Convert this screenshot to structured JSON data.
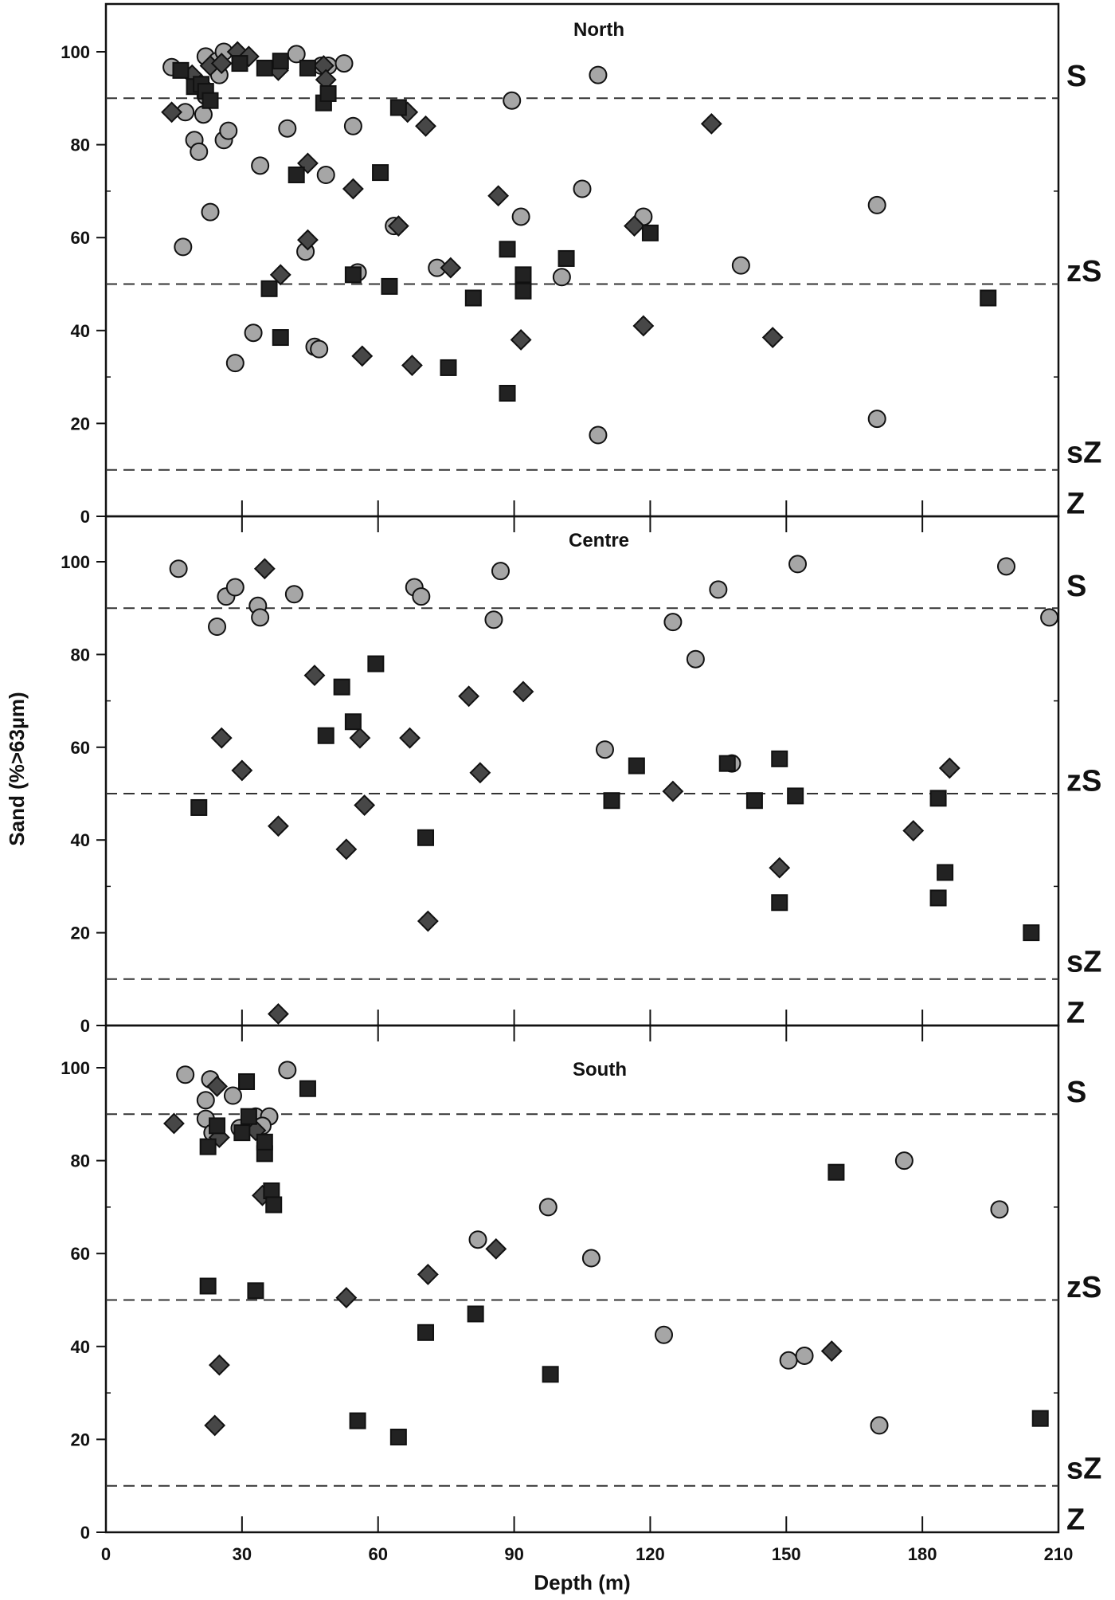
{
  "chart_data": {
    "type": "scatter",
    "xlabel": "Depth (m)",
    "ylabel": "Sand (%>63µm)",
    "xlim": [
      0,
      210
    ],
    "ylim": [
      0,
      110
    ],
    "x_ticks": [
      0,
      30,
      60,
      90,
      120,
      150,
      180,
      210
    ],
    "y_ticks": [
      0,
      20,
      40,
      60,
      80,
      100
    ],
    "grid": false,
    "legend": null,
    "thresholds": [
      {
        "y": 90,
        "style": "dashed",
        "label": "S"
      },
      {
        "y": 50,
        "style": "dashed",
        "label": "zS"
      },
      {
        "y": 10,
        "style": "dashed",
        "label": "sZ"
      }
    ],
    "class_labels": [
      {
        "label": "S",
        "y": 95
      },
      {
        "label": "zS",
        "y": 53
      },
      {
        "label": "sZ",
        "y": 14
      },
      {
        "label": "Z",
        "y": 3
      }
    ],
    "marker_styles": {
      "circle": {
        "fill": "#a6a6a6",
        "stroke": "#111111"
      },
      "diamond": {
        "fill": "#474747",
        "stroke": "#111111"
      },
      "square": {
        "fill": "#222222",
        "stroke": "#111111"
      }
    },
    "panels": [
      {
        "title": "North",
        "series": [
          {
            "marker": "circle",
            "points": [
              [
                14.5,
                96.7
              ],
              [
                17,
                58
              ],
              [
                17.5,
                87
              ],
              [
                19.5,
                81
              ],
              [
                20.5,
                78.5
              ],
              [
                21.5,
                86.5
              ],
              [
                22,
                90.5
              ],
              [
                22,
                99
              ],
              [
                23,
                65.5
              ],
              [
                24.5,
                98
              ],
              [
                25,
                95
              ],
              [
                26,
                81
              ],
              [
                26,
                100
              ],
              [
                27,
                83
              ],
              [
                28.5,
                33
              ],
              [
                32.5,
                39.5
              ],
              [
                34,
                75.5
              ],
              [
                40,
                83.5
              ],
              [
                42,
                99.5
              ],
              [
                44,
                57
              ],
              [
                46,
                36.5
              ],
              [
                47,
                36
              ],
              [
                47.5,
                97
              ],
              [
                48.5,
                73.5
              ],
              [
                49,
                97
              ],
              [
                52.5,
                97.5
              ],
              [
                54.5,
                84
              ],
              [
                55.5,
                52.5
              ],
              [
                63.5,
                62.5
              ],
              [
                73,
                53.5
              ],
              [
                89.5,
                89.5
              ],
              [
                91.5,
                64.5
              ],
              [
                100.5,
                51.5
              ],
              [
                105,
                70.5
              ],
              [
                108.5,
                95
              ],
              [
                108.5,
                17.5
              ],
              [
                118.5,
                64.5
              ],
              [
                140,
                54
              ],
              [
                170,
                67
              ],
              [
                170,
                21
              ]
            ]
          },
          {
            "marker": "diamond",
            "points": [
              [
                14.5,
                87
              ],
              [
                19,
                95
              ],
              [
                21,
                93
              ],
              [
                23,
                97
              ],
              [
                25.5,
                97.5
              ],
              [
                29,
                100
              ],
              [
                31.5,
                99
              ],
              [
                38,
                96
              ],
              [
                38.5,
                52
              ],
              [
                44.5,
                76
              ],
              [
                44.5,
                59.5
              ],
              [
                48,
                97
              ],
              [
                48.5,
                94
              ],
              [
                54.5,
                70.5
              ],
              [
                56.5,
                34.5
              ],
              [
                64.5,
                62.5
              ],
              [
                66.5,
                87
              ],
              [
                67.5,
                32.5
              ],
              [
                70.5,
                84
              ],
              [
                76,
                53.5
              ],
              [
                86.5,
                69
              ],
              [
                91.5,
                38
              ],
              [
                116.5,
                62.5
              ],
              [
                118.5,
                41
              ],
              [
                133.5,
                84.5
              ],
              [
                147,
                38.5
              ]
            ]
          },
          {
            "marker": "square",
            "points": [
              [
                16.5,
                96
              ],
              [
                19.5,
                92.5
              ],
              [
                21,
                93
              ],
              [
                22,
                91.5
              ],
              [
                23,
                89.5
              ],
              [
                29.5,
                97.5
              ],
              [
                38.5,
                98
              ],
              [
                38.5,
                38.5
              ],
              [
                35,
                96.5
              ],
              [
                44.5,
                96.5
              ],
              [
                42,
                73.5
              ],
              [
                36,
                49
              ],
              [
                48,
                89
              ],
              [
                49,
                91
              ],
              [
                54.5,
                52
              ],
              [
                60.5,
                74
              ],
              [
                62.5,
                49.5
              ],
              [
                64.5,
                88
              ],
              [
                75.5,
                32
              ],
              [
                81,
                47
              ],
              [
                88.5,
                57.5
              ],
              [
                88.5,
                26.5
              ],
              [
                92,
                52
              ],
              [
                92,
                48.5
              ],
              [
                101.5,
                55.5
              ],
              [
                120,
                61
              ],
              [
                194.5,
                47
              ]
            ]
          }
        ]
      },
      {
        "title": "Centre",
        "series": [
          {
            "marker": "circle",
            "points": [
              [
                16,
                98.5
              ],
              [
                24.5,
                86
              ],
              [
                26.5,
                92.5
              ],
              [
                28.5,
                94.5
              ],
              [
                33.5,
                90.5
              ],
              [
                34,
                88
              ],
              [
                41.5,
                93
              ],
              [
                68,
                94.5
              ],
              [
                69.5,
                92.5
              ],
              [
                85.5,
                87.5
              ],
              [
                87,
                98
              ],
              [
                110,
                59.5
              ],
              [
                125,
                87
              ],
              [
                130,
                79
              ],
              [
                135,
                94
              ],
              [
                138,
                56.5
              ],
              [
                152.5,
                99.5
              ],
              [
                198.5,
                99
              ],
              [
                208,
                88
              ]
            ]
          },
          {
            "marker": "diamond",
            "points": [
              [
                25.5,
                62
              ],
              [
                30,
                55
              ],
              [
                35,
                98.5
              ],
              [
                38,
                43
              ],
              [
                38,
                2.5
              ],
              [
                46,
                75.5
              ],
              [
                53,
                38
              ],
              [
                56,
                62
              ],
              [
                57,
                47.5
              ],
              [
                67,
                62
              ],
              [
                71,
                22.5
              ],
              [
                80,
                71
              ],
              [
                82.5,
                54.5
              ],
              [
                92,
                72
              ],
              [
                125,
                50.5
              ],
              [
                148.5,
                34
              ],
              [
                178,
                42
              ],
              [
                186,
                55.5
              ]
            ]
          },
          {
            "marker": "square",
            "points": [
              [
                20.5,
                47
              ],
              [
                48.5,
                62.5
              ],
              [
                52,
                73
              ],
              [
                54.5,
                65.5
              ],
              [
                59.5,
                78
              ],
              [
                70.5,
                40.5
              ],
              [
                111.5,
                48.5
              ],
              [
                117,
                56
              ],
              [
                137,
                56.5
              ],
              [
                143,
                48.5
              ],
              [
                148.5,
                57.5
              ],
              [
                148.5,
                26.5
              ],
              [
                152,
                49.5
              ],
              [
                183.5,
                49
              ],
              [
                183.5,
                27.5
              ],
              [
                185,
                33
              ],
              [
                204,
                20
              ]
            ]
          }
        ]
      },
      {
        "title": "South",
        "series": [
          {
            "marker": "circle",
            "points": [
              [
                17.5,
                98.5
              ],
              [
                22,
                93
              ],
              [
                22,
                89
              ],
              [
                23,
                97.5
              ],
              [
                23.5,
                86
              ],
              [
                28,
                94
              ],
              [
                29.5,
                87
              ],
              [
                33,
                89.5
              ],
              [
                36,
                89.5
              ],
              [
                34.5,
                87.5
              ],
              [
                40,
                99.5
              ],
              [
                82,
                63
              ],
              [
                97.5,
                70
              ],
              [
                107,
                59
              ],
              [
                123,
                42.5
              ],
              [
                150.5,
                37
              ],
              [
                154,
                38
              ],
              [
                170.5,
                23
              ],
              [
                176,
                80
              ],
              [
                197,
                69.5
              ]
            ]
          },
          {
            "marker": "diamond",
            "points": [
              [
                15,
                88
              ],
              [
                24.5,
                96
              ],
              [
                25,
                36
              ],
              [
                24,
                23
              ],
              [
                25,
                85
              ],
              [
                34.5,
                72.5
              ],
              [
                33,
                86.5
              ],
              [
                53,
                50.5
              ],
              [
                71,
                55.5
              ],
              [
                86,
                61
              ],
              [
                160,
                39
              ]
            ]
          },
          {
            "marker": "square",
            "points": [
              [
                22.5,
                83
              ],
              [
                22.5,
                53
              ],
              [
                24.5,
                87.5
              ],
              [
                30,
                86
              ],
              [
                31.5,
                89.5
              ],
              [
                31,
                97
              ],
              [
                33,
                52
              ],
              [
                35,
                81.5
              ],
              [
                35,
                84
              ],
              [
                36.5,
                73.5
              ],
              [
                37,
                70.5
              ],
              [
                44.5,
                95.5
              ],
              [
                55.5,
                24
              ],
              [
                64.5,
                20.5
              ],
              [
                70.5,
                43
              ],
              [
                81.5,
                47
              ],
              [
                98,
                34
              ],
              [
                161,
                77.5
              ],
              [
                206,
                24.5
              ]
            ]
          }
        ]
      }
    ]
  }
}
